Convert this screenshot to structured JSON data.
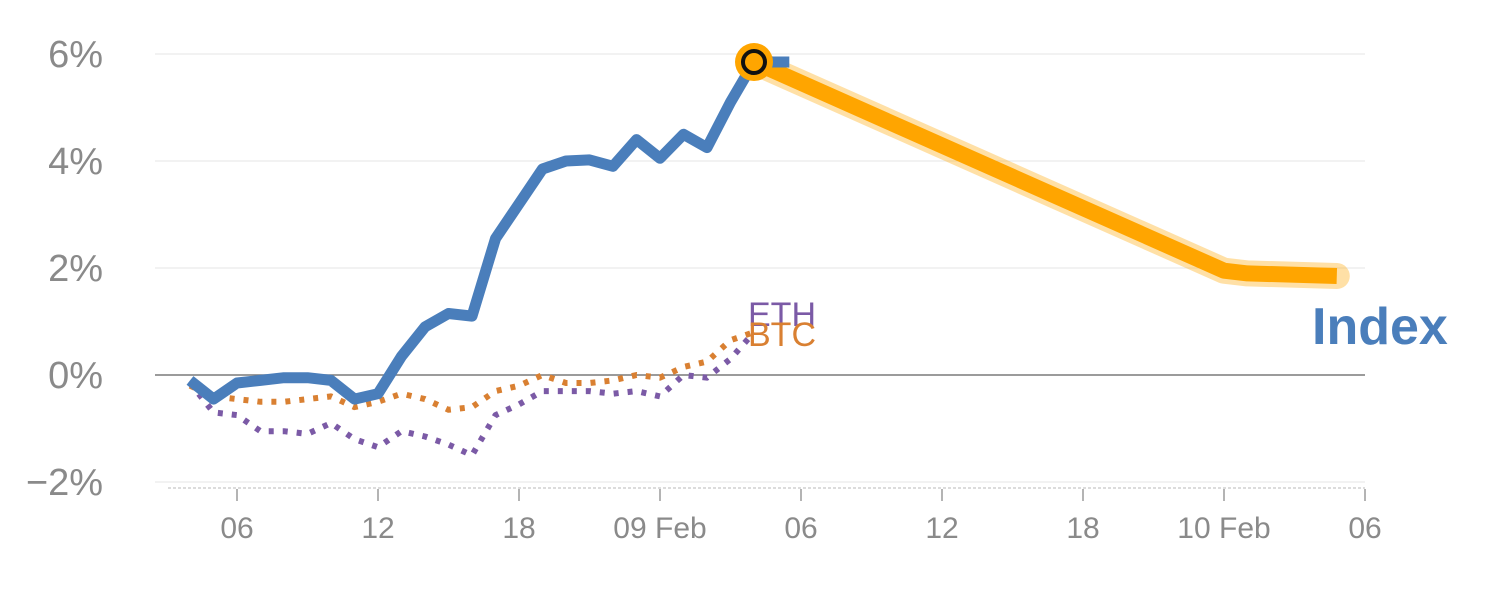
{
  "colors": {
    "index": "#4A7EBB",
    "btc": "#D98032",
    "eth": "#7B5AA6",
    "highlight": "#FFA500",
    "grid": "#e6e6e6",
    "zero_line": "#7a7a7a",
    "tick_text": "#8a8a8a"
  },
  "chart_data": {
    "type": "line",
    "title": "",
    "xlabel": "",
    "ylabel": "",
    "ylim": [
      -2.2,
      6.3
    ],
    "y_ticks": [
      {
        "value": 6,
        "label": "6%"
      },
      {
        "value": 4,
        "label": "4%"
      },
      {
        "value": 2,
        "label": "2%"
      },
      {
        "value": 0,
        "label": "0%"
      },
      {
        "value": -2,
        "label": "−2%"
      }
    ],
    "x_ticks": [
      {
        "hour": 6,
        "label": "06"
      },
      {
        "hour": 12,
        "label": "12"
      },
      {
        "hour": 18,
        "label": "18"
      },
      {
        "hour": 24,
        "label": "09 Feb"
      },
      {
        "hour": 30,
        "label": "06"
      },
      {
        "hour": 36,
        "label": "12"
      },
      {
        "hour": 42,
        "label": "18"
      },
      {
        "hour": 48,
        "label": "10 Feb"
      },
      {
        "hour": 54,
        "label": "06"
      }
    ],
    "grid": true,
    "series": [
      {
        "name": "Index",
        "key": "index",
        "style": "solid",
        "x": [
          4,
          5,
          6,
          7,
          8,
          9,
          10,
          11,
          12,
          13,
          14,
          15,
          16,
          17,
          18,
          19,
          20,
          21,
          22,
          23,
          24,
          25,
          26,
          27,
          28,
          29.5
        ],
        "y": [
          -0.1,
          -0.45,
          -0.15,
          -0.1,
          -0.05,
          -0.05,
          -0.1,
          -0.45,
          -0.35,
          0.35,
          0.9,
          1.15,
          1.1,
          2.55,
          3.2,
          3.85,
          4.0,
          4.02,
          3.9,
          4.4,
          4.05,
          4.5,
          4.25,
          5.1,
          5.85,
          5.85
        ]
      },
      {
        "name": "BTC",
        "key": "btc",
        "style": "dotted",
        "x": [
          4,
          5,
          6,
          7,
          8,
          9,
          10,
          11,
          12,
          13,
          14,
          15,
          16,
          17,
          18,
          19,
          20,
          21,
          22,
          23,
          24,
          25,
          26,
          27,
          28
        ],
        "y": [
          -0.2,
          -0.4,
          -0.45,
          -0.5,
          -0.5,
          -0.45,
          -0.4,
          -0.6,
          -0.5,
          -0.35,
          -0.45,
          -0.65,
          -0.6,
          -0.3,
          -0.2,
          0.0,
          -0.15,
          -0.15,
          -0.1,
          0.0,
          -0.05,
          0.15,
          0.25,
          0.65,
          0.8
        ]
      },
      {
        "name": "ETH",
        "key": "eth",
        "style": "dotted",
        "x": [
          4,
          5,
          6,
          7,
          8,
          9,
          10,
          11,
          12,
          13,
          14,
          15,
          16,
          17,
          18,
          19,
          20,
          21,
          22,
          23,
          24,
          25,
          26,
          27,
          28
        ],
        "y": [
          -0.15,
          -0.7,
          -0.75,
          -1.05,
          -1.05,
          -1.1,
          -0.9,
          -1.2,
          -1.35,
          -1.05,
          -1.15,
          -1.3,
          -1.5,
          -0.75,
          -0.55,
          -0.3,
          -0.3,
          -0.3,
          -0.35,
          -0.3,
          -0.4,
          0.0,
          -0.05,
          0.3,
          0.8
        ]
      },
      {
        "name": "Index",
        "key": "highlight",
        "style": "thick",
        "x": [
          28,
          48,
          49,
          52.8
        ],
        "y": [
          5.85,
          1.95,
          1.9,
          1.85
        ]
      }
    ],
    "marker": {
      "x": 28,
      "y": 5.85
    },
    "annotations": [
      {
        "key": "eth",
        "text": "ETH"
      },
      {
        "key": "btc",
        "text": "BTC"
      },
      {
        "key": "index",
        "text": "Index"
      }
    ]
  }
}
